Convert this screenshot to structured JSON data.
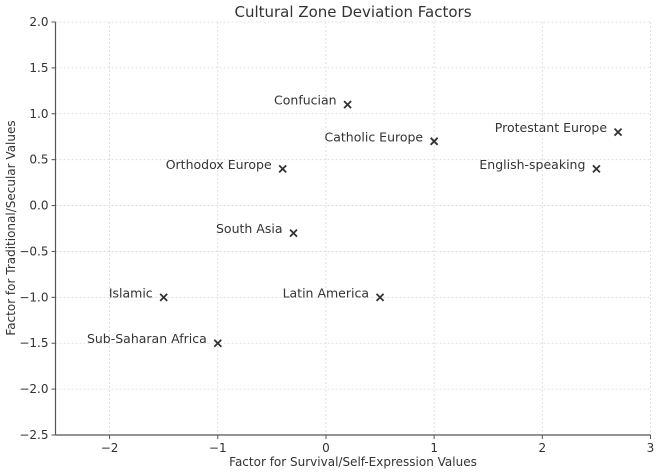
{
  "chart_data": {
    "type": "scatter",
    "title": "Cultural Zone Deviation Factors",
    "xlabel": "Factor for Survival/Self-Expression Values",
    "ylabel": "Factor for Traditional/Secular Values",
    "xlim": [
      -2.5,
      3
    ],
    "ylim": [
      -2.5,
      2.0
    ],
    "xticks": [
      -2,
      -1,
      0,
      1,
      2,
      3
    ],
    "xtick_labels": [
      "−2",
      "−1",
      "0",
      "1",
      "2",
      "3"
    ],
    "yticks": [
      2.0,
      1.5,
      1.0,
      0.5,
      0.0,
      -0.5,
      -1.0,
      -1.5,
      -2.0,
      -2.5
    ],
    "ytick_labels": [
      "2.0",
      "1.5",
      "1.0",
      "0.5",
      "0.0",
      "−0.5",
      "−1.0",
      "−1.5",
      "−2.0",
      "−2.5"
    ],
    "grid": true,
    "marker": "x",
    "marker_color": "#333333",
    "points": [
      {
        "label": "Confucian",
        "x": 0.2,
        "y": 1.1
      },
      {
        "label": "Catholic Europe",
        "x": 1.0,
        "y": 0.7
      },
      {
        "label": "Protestant Europe",
        "x": 2.7,
        "y": 0.8
      },
      {
        "label": "Orthodox Europe",
        "x": -0.4,
        "y": 0.4
      },
      {
        "label": "English-speaking",
        "x": 2.5,
        "y": 0.4
      },
      {
        "label": "South Asia",
        "x": -0.3,
        "y": -0.3
      },
      {
        "label": "Islamic",
        "x": -1.5,
        "y": -1.0
      },
      {
        "label": "Latin America",
        "x": 0.5,
        "y": -1.0
      },
      {
        "label": "Sub-Saharan Africa",
        "x": -1.0,
        "y": -1.5
      }
    ]
  }
}
